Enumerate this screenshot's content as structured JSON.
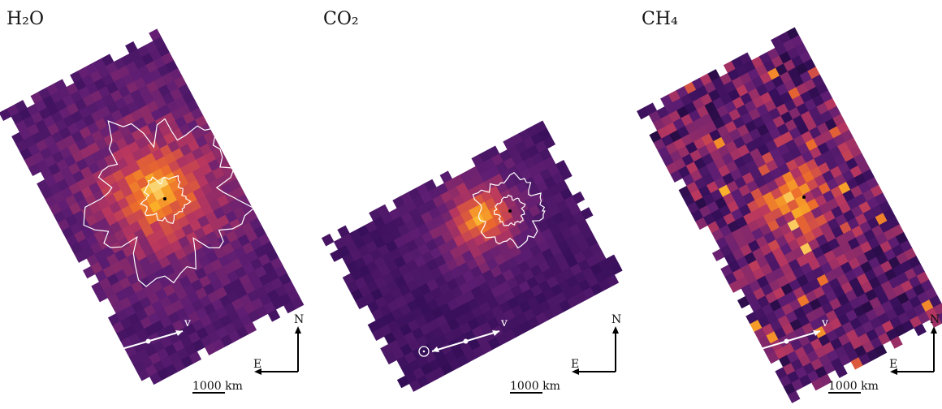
{
  "panels": [
    {
      "title": "H₂O",
      "velocity": "v",
      "north": "N",
      "east": "E",
      "scale": "1000 km"
    },
    {
      "title": "CO₂",
      "velocity": "v",
      "north": "N",
      "east": "E",
      "scale": "1000 km"
    },
    {
      "title": "CH₄",
      "velocity": "v",
      "north": "N",
      "east": "E",
      "scale": "1000 km"
    }
  ]
}
